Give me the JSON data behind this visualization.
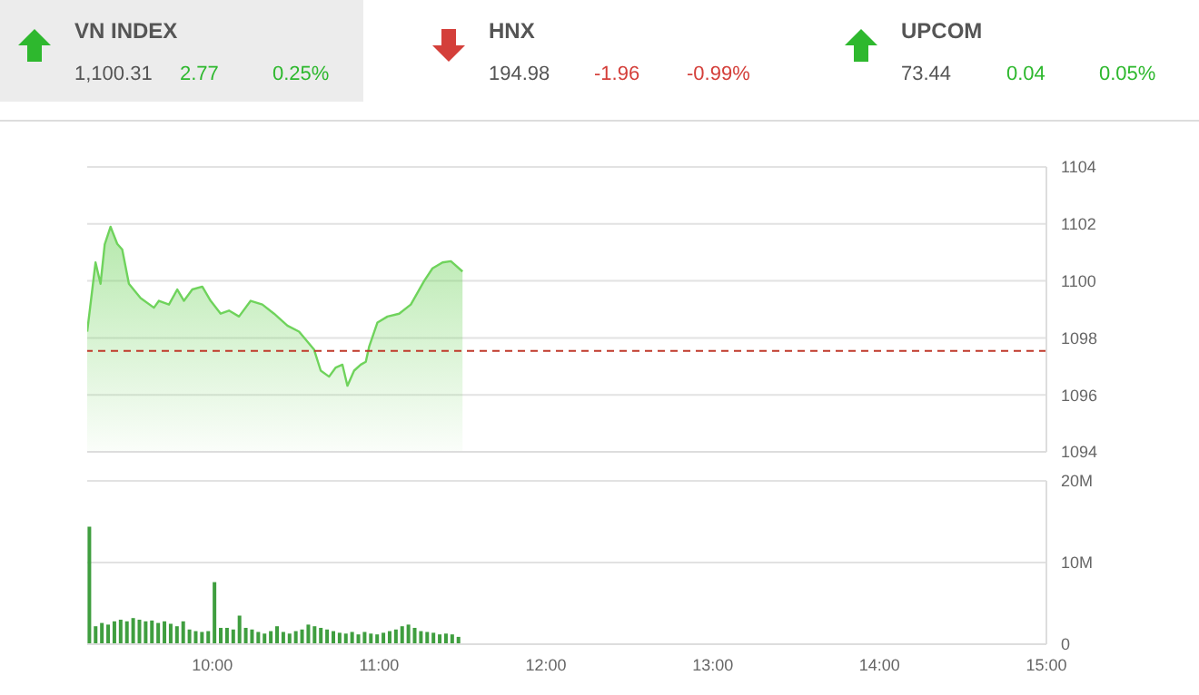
{
  "chart_data": [
    {
      "type": "other",
      "categories": [
        "VN INDEX",
        "HNX",
        "UPCOM"
      ],
      "series": [
        {
          "values": [
            1100.31,
            194.98,
            73.44
          ],
          "value_labels": [
            "1,100.31",
            "194.98",
            "73.44"
          ],
          "colors": [
            "#555555",
            "#555555",
            "#555555"
          ]
        },
        {
          "values": [
            2.77,
            -1.96,
            0.04
          ],
          "value_labels": [
            "2.77",
            "-1.96",
            "0.04"
          ],
          "colors": [
            "#2eb82e",
            "#d43f3a",
            "#2eb82e"
          ]
        },
        {
          "values": [
            0.25,
            -0.99,
            0.05
          ],
          "value_labels": [
            "0.25%",
            "-0.99%",
            "0.05%"
          ],
          "colors": [
            "#2eb82e",
            "#d43f3a",
            "#2eb82e"
          ]
        }
      ]
    },
    {
      "type": "area",
      "x": [
        9.25,
        9.3,
        9.33,
        9.355,
        9.39,
        9.43,
        9.46,
        9.5,
        9.57,
        9.65,
        9.68,
        9.74,
        9.79,
        9.83,
        9.88,
        9.94,
        9.99,
        10.05,
        10.1,
        10.16,
        10.23,
        10.3,
        10.37,
        10.45,
        10.52,
        10.61,
        10.65,
        10.7,
        10.74,
        10.78,
        10.81,
        10.85,
        10.89,
        10.92,
        10.94,
        10.99,
        11.05,
        11.12,
        11.19,
        11.27,
        11.32,
        11.38,
        11.43,
        11.5
      ],
      "series": [
        {
          "color": "#6fd35c",
          "values": [
            1098.22,
            1100.65,
            1099.9,
            1101.28,
            1101.9,
            1101.3,
            1101.1,
            1099.9,
            1099.4,
            1099.06,
            1099.3,
            1099.17,
            1099.7,
            1099.3,
            1099.7,
            1099.8,
            1099.3,
            1098.85,
            1098.96,
            1098.75,
            1099.3,
            1099.17,
            1098.85,
            1098.43,
            1098.22,
            1097.59,
            1096.85,
            1096.64,
            1096.96,
            1097.06,
            1096.32,
            1096.85,
            1097.06,
            1097.16,
            1097.69,
            1098.54,
            1098.75,
            1098.85,
            1099.17,
            1100.0,
            1100.44,
            1100.65,
            1100.69,
            1100.33
          ]
        }
      ],
      "xlim": [
        9.25,
        15
      ],
      "ylim": [
        1094,
        1104
      ],
      "yticks": [
        1094,
        1096,
        1098,
        1100,
        1102,
        1104
      ],
      "grid": "y",
      "tick_labels": "y",
      "ref_lines": [
        {
          "axis": "y",
          "value": 1097.54,
          "color": "#c0392b",
          "line_style": "dashed"
        }
      ]
    },
    {
      "type": "bar",
      "x": [
        9.26,
        9.2975,
        9.335,
        9.3725,
        9.41,
        9.4475,
        9.485,
        9.5225,
        9.56,
        9.5975,
        9.635,
        9.6725,
        9.71,
        9.7475,
        9.785,
        9.8225,
        9.86,
        9.8975,
        9.935,
        9.9725,
        10.01,
        10.0475,
        10.085,
        10.1225,
        10.16,
        10.1975,
        10.235,
        10.2725,
        10.31,
        10.3475,
        10.385,
        10.4225,
        10.46,
        10.4975,
        10.535,
        10.5725,
        10.61,
        10.6475,
        10.685,
        10.7225,
        10.76,
        10.7975,
        10.835,
        10.8725,
        10.91,
        10.9475,
        10.985,
        11.0225,
        11.06,
        11.0975,
        11.135,
        11.1725,
        11.21,
        11.2475,
        11.285,
        11.3225,
        11.36,
        11.3975,
        11.435,
        11.4725
      ],
      "values": [
        14.4,
        2.2,
        2.6,
        2.4,
        2.8,
        3.0,
        2.8,
        3.2,
        3.0,
        2.8,
        2.9,
        2.6,
        2.8,
        2.5,
        2.2,
        2.8,
        1.8,
        1.6,
        1.5,
        1.6,
        7.6,
        2.0,
        2.0,
        1.8,
        3.5,
        2.0,
        1.8,
        1.5,
        1.3,
        1.6,
        2.2,
        1.5,
        1.3,
        1.6,
        1.8,
        2.4,
        2.2,
        2.0,
        1.8,
        1.6,
        1.4,
        1.3,
        1.5,
        1.2,
        1.5,
        1.3,
        1.2,
        1.4,
        1.6,
        1.8,
        2.2,
        2.4,
        2.0,
        1.6,
        1.5,
        1.4,
        1.2,
        1.3,
        1.2,
        0.9
      ],
      "color": "#3f9e3f",
      "xlim": [
        9.25,
        15
      ],
      "xticks": [
        {
          "value": 10,
          "label": "10:00"
        },
        {
          "value": 11,
          "label": "11:00"
        },
        {
          "value": 12,
          "label": "12:00"
        },
        {
          "value": 13,
          "label": "13:00"
        },
        {
          "value": 14,
          "label": "14:00"
        },
        {
          "value": 15,
          "label": "15:00"
        }
      ],
      "ylim": [
        0,
        20
      ],
      "yticks": [
        {
          "value": 0,
          "label": "0"
        },
        {
          "value": 10,
          "label": "10M"
        },
        {
          "value": 20,
          "label": "20M"
        }
      ],
      "grid": "y"
    }
  ]
}
